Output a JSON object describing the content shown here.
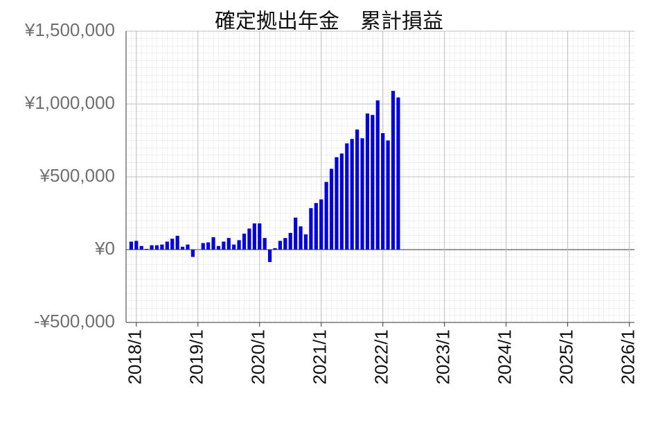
{
  "chart_data": {
    "type": "bar",
    "title": "確定拠出年金　累計損益",
    "x": [
      "2017/12",
      "2018/1",
      "2018/2",
      "2018/3",
      "2018/4",
      "2018/5",
      "2018/6",
      "2018/7",
      "2018/8",
      "2018/9",
      "2018/10",
      "2018/11",
      "2018/12",
      "2019/1",
      "2019/2",
      "2019/3",
      "2019/4",
      "2019/5",
      "2019/6",
      "2019/7",
      "2019/8",
      "2019/9",
      "2019/10",
      "2019/11",
      "2019/12",
      "2020/1",
      "2020/2",
      "2020/3",
      "2020/4",
      "2020/5",
      "2020/6",
      "2020/7",
      "2020/8",
      "2020/9",
      "2020/10",
      "2020/11",
      "2020/12",
      "2021/1",
      "2021/2",
      "2021/3",
      "2021/4",
      "2021/5",
      "2021/6",
      "2021/7",
      "2021/8",
      "2021/9",
      "2021/10",
      "2021/11",
      "2021/12",
      "2022/1",
      "2022/2",
      "2022/3",
      "2022/4"
    ],
    "values": [
      55000,
      60000,
      25000,
      5000,
      30000,
      30000,
      35000,
      55000,
      75000,
      95000,
      20000,
      35000,
      -50000,
      0,
      45000,
      50000,
      85000,
      25000,
      55000,
      80000,
      35000,
      65000,
      110000,
      145000,
      180000,
      180000,
      80000,
      -85000,
      10000,
      60000,
      80000,
      115000,
      220000,
      160000,
      105000,
      285000,
      320000,
      345000,
      465000,
      555000,
      635000,
      660000,
      730000,
      760000,
      825000,
      765000,
      935000,
      925000,
      1025000,
      800000,
      750000,
      1090000,
      1045000
    ],
    "color": "#0000dd",
    "xlim": [
      "2017/11",
      "2026/2"
    ],
    "xticks": [
      "2018/1",
      "2019/1",
      "2020/1",
      "2021/1",
      "2022/1",
      "2023/1",
      "2024/1",
      "2025/1",
      "2026/1"
    ],
    "ylim": [
      -500000,
      1500000
    ],
    "yticks": [
      {
        "value": -500000,
        "label": "-¥500,000"
      },
      {
        "value": 0,
        "label": "¥0"
      },
      {
        "value": 500000,
        "label": "¥500,000"
      },
      {
        "value": 1000000,
        "label": "¥1,000,000"
      },
      {
        "value": 1500000,
        "label": "¥1,500,000"
      }
    ],
    "grid": true
  }
}
